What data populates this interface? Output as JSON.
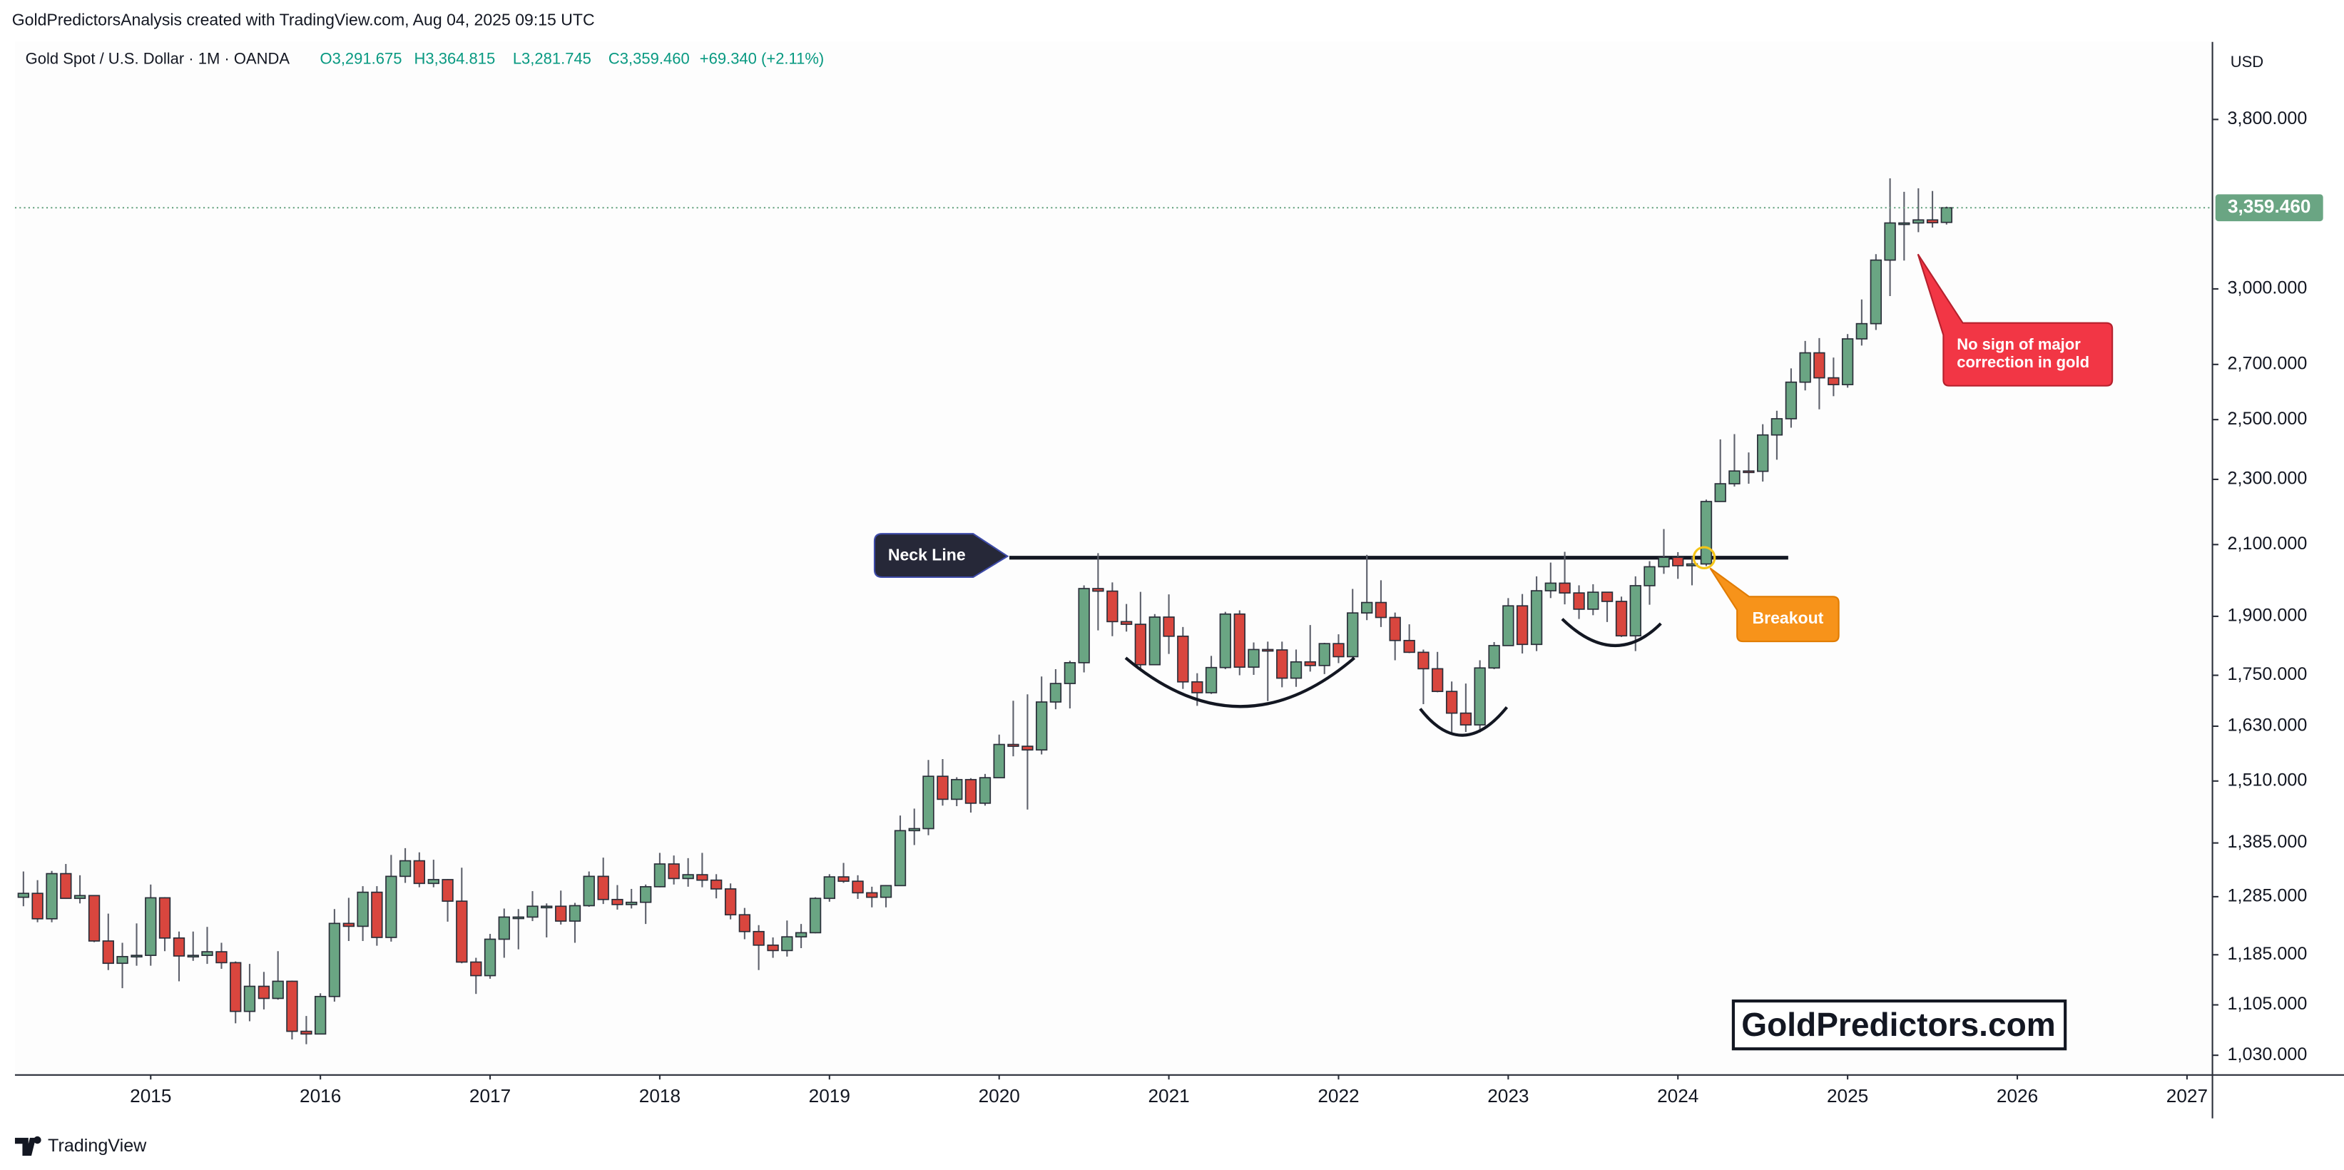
{
  "chart_data": {
    "type": "candlestick",
    "top_note": "GoldPredictorsAnalysis created with TradingView.com, Aug 04, 2025 09:15 UTC",
    "legend_header": {
      "symbol": "Gold Spot / U.S. Dollar · 1M · OANDA",
      "open": "O3,291.675",
      "high": "H3,364.815",
      "low": "L3,281.745",
      "close": "C3,359.460",
      "change": "+69.340 (+2.11%)"
    },
    "currency": "USD",
    "branding": "TradingView",
    "watermark": "GoldPredictors.com",
    "log_scale": true,
    "grid": false,
    "up_color": "#6aa583",
    "down_color": "#d9463e",
    "xlim": [
      2014.2,
      2027.15
    ],
    "xticks": [
      2015,
      2016,
      2017,
      2018,
      2019,
      2020,
      2021,
      2022,
      2023,
      2024,
      2025,
      2026,
      2027
    ],
    "ylim": [
      1002,
      4234
    ],
    "yticks": [
      {
        "value": 1030,
        "label": "1,030.000"
      },
      {
        "value": 1105,
        "label": "1,105.000"
      },
      {
        "value": 1185,
        "label": "1,185.000"
      },
      {
        "value": 1285,
        "label": "1,285.000"
      },
      {
        "value": 1385,
        "label": "1,385.000"
      },
      {
        "value": 1510,
        "label": "1,510.000"
      },
      {
        "value": 1630,
        "label": "1,630.000"
      },
      {
        "value": 1750,
        "label": "1,750.000"
      },
      {
        "value": 1900,
        "label": "1,900.000"
      },
      {
        "value": 2100,
        "label": "2,100.000"
      },
      {
        "value": 2300,
        "label": "2,300.000"
      },
      {
        "value": 2500,
        "label": "2,500.000"
      },
      {
        "value": 2700,
        "label": "2,700.000"
      },
      {
        "value": 3000,
        "label": "3,000.000"
      },
      {
        "value": 3800,
        "label": "3,800.000"
      }
    ],
    "price_label": {
      "value": 3359.46,
      "label": "3,359.460"
    },
    "neck_line": {
      "label": "Neck Line",
      "value": 2062,
      "x": [
        2020.06,
        2024.65
      ]
    },
    "breakout_label": "Breakout",
    "correction_note": [
      "No sign of major",
      "correction in gold"
    ],
    "x": [
      2014.25,
      2014.333,
      2014.417,
      2014.5,
      2014.583,
      2014.667,
      2014.75,
      2014.833,
      2014.917,
      2015,
      2015.083,
      2015.167,
      2015.25,
      2015.333,
      2015.417,
      2015.5,
      2015.583,
      2015.667,
      2015.75,
      2015.833,
      2015.917,
      2016,
      2016.083,
      2016.167,
      2016.25,
      2016.333,
      2016.417,
      2016.5,
      2016.583,
      2016.667,
      2016.75,
      2016.833,
      2016.917,
      2017,
      2017.083,
      2017.167,
      2017.25,
      2017.333,
      2017.417,
      2017.5,
      2017.583,
      2017.667,
      2017.75,
      2017.833,
      2017.917,
      2018,
      2018.083,
      2018.167,
      2018.25,
      2018.333,
      2018.417,
      2018.5,
      2018.583,
      2018.667,
      2018.75,
      2018.833,
      2018.917,
      2019,
      2019.083,
      2019.167,
      2019.25,
      2019.333,
      2019.417,
      2019.5,
      2019.583,
      2019.667,
      2019.75,
      2019.833,
      2019.917,
      2020,
      2020.083,
      2020.167,
      2020.25,
      2020.333,
      2020.417,
      2020.5,
      2020.583,
      2020.667,
      2020.75,
      2020.833,
      2020.917,
      2021,
      2021.083,
      2021.167,
      2021.25,
      2021.333,
      2021.417,
      2021.5,
      2021.583,
      2021.667,
      2021.75,
      2021.833,
      2021.917,
      2022,
      2022.083,
      2022.167,
      2022.25,
      2022.333,
      2022.417,
      2022.5,
      2022.583,
      2022.667,
      2022.75,
      2022.833,
      2022.917,
      2023,
      2023.083,
      2023.167,
      2023.25,
      2023.333,
      2023.417,
      2023.5,
      2023.583,
      2023.667,
      2023.75,
      2023.833,
      2023.917,
      2024,
      2024.083,
      2024.167,
      2024.25,
      2024.333,
      2024.417,
      2024.5,
      2024.583,
      2024.667,
      2024.75,
      2024.833,
      2024.917,
      2025,
      2025.083,
      2025.167,
      2025.25,
      2025.333,
      2025.417,
      2025.5,
      2025.583
    ],
    "open": [
      1284,
      1291,
      1246,
      1327,
      1282,
      1287,
      1208,
      1171,
      1182,
      1184,
      1283,
      1213,
      1183,
      1184,
      1190,
      1172,
      1095,
      1134,
      1115,
      1142,
      1065,
      1061,
      1118,
      1238,
      1233,
      1293,
      1214,
      1322,
      1351,
      1309,
      1316,
      1277,
      1173,
      1151,
      1211,
      1249,
      1249,
      1268,
      1268,
      1242,
      1269,
      1322,
      1280,
      1271,
      1275,
      1303,
      1345,
      1318,
      1325,
      1315,
      1299,
      1253,
      1224,
      1201,
      1192,
      1215,
      1222,
      1282,
      1321,
      1313,
      1292,
      1284,
      1305,
      1409,
      1413,
      1520,
      1472,
      1513,
      1464,
      1517,
      1589,
      1585,
      1577,
      1686,
      1730,
      1781,
      1975,
      1968,
      1886,
      1879,
      1776,
      1898,
      1848,
      1734,
      1708,
      1769,
      1906,
      1770,
      1814,
      1813,
      1743,
      1783,
      1774,
      1829,
      1796,
      1909,
      1937,
      1897,
      1837,
      1807,
      1766,
      1711,
      1660,
      1633,
      1768,
      1824,
      1928,
      1827,
      1969,
      1990,
      1963,
      1919,
      1965,
      1940,
      1849,
      1983,
      2036,
      2063,
      2039,
      2044,
      2230,
      2286,
      2327,
      2326,
      2447,
      2503,
      2634,
      2744,
      2650,
      2625,
      2798,
      2858,
      3123,
      3289,
      3289,
      3303,
      3291.675
    ],
    "high": [
      1331,
      1315,
      1332,
      1345,
      1324,
      1287,
      1255,
      1205,
      1238,
      1307,
      1284,
      1224,
      1224,
      1232,
      1205,
      1174,
      1170,
      1157,
      1191,
      1143,
      1088,
      1123,
      1263,
      1283,
      1304,
      1304,
      1362,
      1375,
      1367,
      1353,
      1317,
      1338,
      1180,
      1220,
      1264,
      1263,
      1295,
      1273,
      1296,
      1274,
      1331,
      1357,
      1306,
      1299,
      1307,
      1366,
      1361,
      1356,
      1366,
      1326,
      1309,
      1265,
      1235,
      1214,
      1243,
      1237,
      1284,
      1326,
      1347,
      1324,
      1303,
      1306,
      1439,
      1453,
      1555,
      1557,
      1518,
      1516,
      1525,
      1611,
      1689,
      1704,
      1747,
      1765,
      1786,
      1984,
      2075,
      1992,
      1933,
      1966,
      1906,
      1959,
      1872,
      1755,
      1798,
      1912,
      1916,
      1832,
      1834,
      1834,
      1814,
      1877,
      1831,
      1853,
      1974,
      2070,
      1998,
      1910,
      1879,
      1814,
      1808,
      1735,
      1730,
      1787,
      1833,
      1949,
      1960,
      2009,
      2048,
      2079,
      1984,
      1987,
      1966,
      1953,
      2009,
      2052,
      2146,
      2078,
      2065,
      2236,
      2432,
      2450,
      2388,
      2484,
      2531,
      2685,
      2790,
      2801,
      2726,
      2817,
      2956,
      3149,
      3500,
      3435,
      3452,
      3439,
      3364.815
    ],
    "low": [
      1268,
      1240,
      1240,
      1281,
      1273,
      1206,
      1160,
      1131,
      1167,
      1167,
      1191,
      1142,
      1175,
      1170,
      1162,
      1077,
      1080,
      1098,
      1113,
      1053,
      1046,
      1061,
      1110,
      1208,
      1208,
      1200,
      1207,
      1310,
      1302,
      1302,
      1241,
      1171,
      1122,
      1146,
      1180,
      1194,
      1242,
      1214,
      1236,
      1205,
      1267,
      1272,
      1262,
      1264,
      1237,
      1302,
      1307,
      1303,
      1302,
      1282,
      1245,
      1211,
      1160,
      1180,
      1182,
      1196,
      1221,
      1276,
      1310,
      1281,
      1266,
      1266,
      1305,
      1381,
      1400,
      1459,
      1458,
      1445,
      1459,
      1517,
      1563,
      1451,
      1567,
      1669,
      1671,
      1757,
      1863,
      1848,
      1860,
      1765,
      1775,
      1803,
      1717,
      1677,
      1705,
      1765,
      1750,
      1751,
      1688,
      1721,
      1722,
      1759,
      1753,
      1780,
      1786,
      1890,
      1872,
      1787,
      1805,
      1681,
      1709,
      1615,
      1617,
      1616,
      1765,
      1824,
      1804,
      1810,
      1949,
      1932,
      1893,
      1903,
      1885,
      1846,
      1810,
      1931,
      2016,
      2002,
      1984,
      2038,
      2229,
      2277,
      2286,
      2293,
      2364,
      2472,
      2604,
      2536,
      2583,
      2614,
      2772,
      2833,
      2970,
      3121,
      3247,
      3268,
      3281.745
    ],
    "close": [
      1291,
      1246,
      1327,
      1282,
      1287,
      1208,
      1171,
      1182,
      1184,
      1283,
      1213,
      1183,
      1184,
      1190,
      1172,
      1095,
      1134,
      1115,
      1142,
      1065,
      1061,
      1118,
      1238,
      1233,
      1293,
      1214,
      1322,
      1351,
      1309,
      1316,
      1277,
      1173,
      1151,
      1211,
      1249,
      1249,
      1268,
      1268,
      1242,
      1269,
      1322,
      1280,
      1271,
      1275,
      1303,
      1345,
      1318,
      1325,
      1315,
      1299,
      1253,
      1224,
      1201,
      1192,
      1215,
      1222,
      1282,
      1321,
      1313,
      1292,
      1284,
      1305,
      1409,
      1413,
      1520,
      1472,
      1513,
      1464,
      1517,
      1589,
      1585,
      1577,
      1686,
      1730,
      1781,
      1975,
      1968,
      1886,
      1879,
      1776,
      1898,
      1848,
      1734,
      1708,
      1769,
      1906,
      1770,
      1814,
      1813,
      1743,
      1783,
      1774,
      1829,
      1796,
      1909,
      1937,
      1897,
      1837,
      1807,
      1766,
      1711,
      1660,
      1633,
      1768,
      1824,
      1928,
      1827,
      1969,
      1990,
      1963,
      1919,
      1965,
      1940,
      1849,
      1983,
      2036,
      2063,
      2039,
      2044,
      2230,
      2286,
      2327,
      2326,
      2447,
      2503,
      2634,
      2744,
      2650,
      2625,
      2798,
      2858,
      3123,
      3289,
      3289,
      3303,
      3290,
      3359.46
    ]
  }
}
